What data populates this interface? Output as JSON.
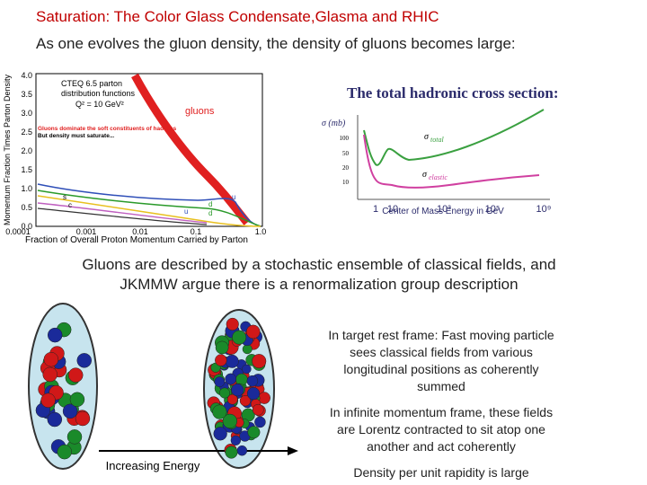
{
  "slide": {
    "title": "Saturation: The Color Glass Condensate,Glasma and RHIC",
    "subtitle": "As one evolves the gluon density, the density of gluons becomes large:",
    "pdf_figure": {
      "y_label": "Momentum Fraction Times Parton Density",
      "x_label": "Fraction of Overall Proton Momentum Carried by Parton",
      "yticks": [
        "0.0",
        "0.5",
        "1.0",
        "1.5",
        "2.0",
        "2.5",
        "3.0",
        "3.5",
        "4.0"
      ],
      "xticks": [
        "0.0001",
        "0.001",
        "0.01",
        "0.1",
        "1.0"
      ],
      "legend": [
        "CTEQ 6.5 parton",
        "distribution functions",
        "Q² = 10 GeV²"
      ],
      "gluon_label": "gluons",
      "note_red": "Gluons dominate the soft constituents of hadrons",
      "note_black": "But density must saturate...",
      "curve_labels": [
        "u",
        "d",
        "s",
        "c",
        "u",
        "d"
      ]
    },
    "xsec_figure": {
      "title": "The total hadronic cross section:",
      "y_label": "σ (mb)",
      "yticks": [
        "100",
        "50",
        "20",
        "10"
      ],
      "xticks": [
        "1",
        "10",
        "10³",
        "10⁵",
        "10⁹"
      ],
      "x_label": "Center of Mass Energy in GeV",
      "total_symbol": "σ",
      "total_sub": "total",
      "elastic_symbol": "σ",
      "elastic_sub": "elastic"
    },
    "statement": [
      "Gluons are described by a stochastic ensemble of classical fields, and",
      "JKMMW argue there is a renormalization group description"
    ],
    "diagram_arrow": "Increasing Energy",
    "notes": [
      [
        "In target rest frame:  Fast moving particle",
        "sees classical fields from various",
        "longitudinal positions as coherently",
        "summed"
      ],
      [
        "In infinite momentum frame, these fields",
        "are Lorentz contracted to sit atop one",
        "another and act coherently"
      ],
      [
        "Density per unit rapidity is large"
      ]
    ]
  }
}
